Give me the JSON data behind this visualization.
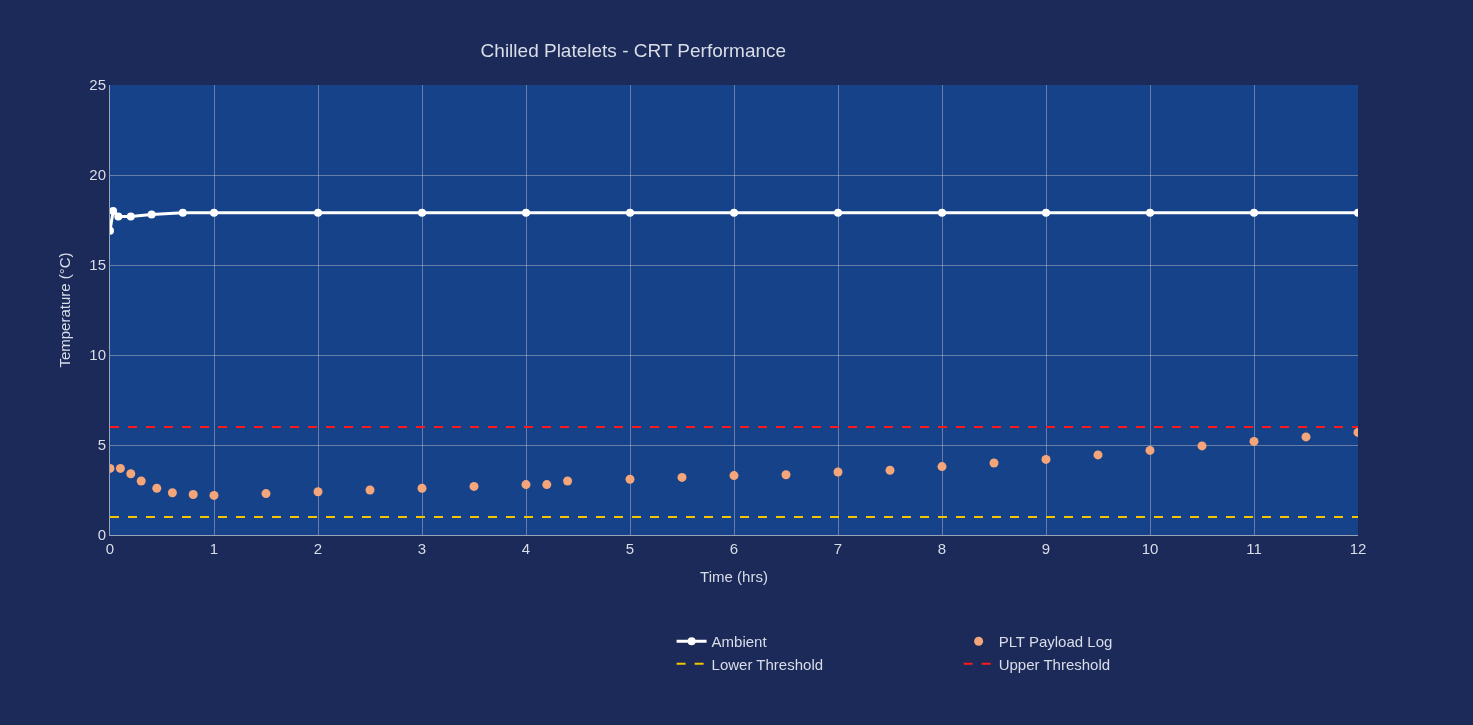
{
  "chart_data": {
    "type": "line",
    "title": "Chilled Platelets - CRT Performance",
    "xlabel": "Time (hrs)",
    "ylabel": "Temperature (°C)",
    "xlim": [
      0,
      12
    ],
    "xticks": [
      0,
      1,
      2,
      3,
      4,
      5,
      6,
      7,
      8,
      9,
      10,
      11,
      12
    ],
    "ylim": [
      0,
      25
    ],
    "yticks": [
      0,
      5,
      10,
      15,
      20,
      25
    ],
    "grid": true,
    "legend": "bottom",
    "series": [
      {
        "name": "Ambient",
        "marker": "circle",
        "line_style": "solid",
        "color": "#ffffff",
        "x": [
          0,
          0.03,
          0.08,
          0.2,
          0.4,
          0.7,
          1,
          2,
          3,
          4,
          5,
          6,
          7,
          8,
          9,
          10,
          11,
          12
        ],
        "values": [
          16.9,
          18.0,
          17.7,
          17.7,
          17.8,
          17.9,
          17.9,
          17.9,
          17.9,
          17.9,
          17.9,
          17.9,
          17.9,
          17.9,
          17.9,
          17.9,
          17.9,
          17.9
        ]
      },
      {
        "name": "PLT Payload Log",
        "type": "scatter",
        "marker": "circle",
        "color": "#f4a57a",
        "x": [
          0,
          0.1,
          0.2,
          0.3,
          0.45,
          0.6,
          0.8,
          1,
          1.5,
          2,
          2.5,
          3,
          3.5,
          4,
          4.2,
          4.4,
          5,
          5.5,
          6,
          6.5,
          7,
          7.5,
          8,
          8.5,
          9,
          9.5,
          10,
          10.5,
          11,
          11.5,
          12
        ],
        "values": [
          3.7,
          3.7,
          3.4,
          3.0,
          2.6,
          2.35,
          2.25,
          2.2,
          2.3,
          2.4,
          2.5,
          2.6,
          2.7,
          2.8,
          2.8,
          3.0,
          3.1,
          3.2,
          3.3,
          3.35,
          3.5,
          3.6,
          3.8,
          4.0,
          4.2,
          4.45,
          4.7,
          4.95,
          5.2,
          5.45,
          5.7
        ]
      },
      {
        "name": "Lower Threshold",
        "marker": "none",
        "line_style": "dashed",
        "color": "#f5c400",
        "x": [
          0,
          12
        ],
        "values": [
          1,
          1
        ]
      },
      {
        "name": "Upper Threshold",
        "marker": "none",
        "line_style": "dashed",
        "color": "#ff1a1a",
        "x": [
          0,
          12
        ],
        "values": [
          6,
          6
        ]
      }
    ]
  }
}
